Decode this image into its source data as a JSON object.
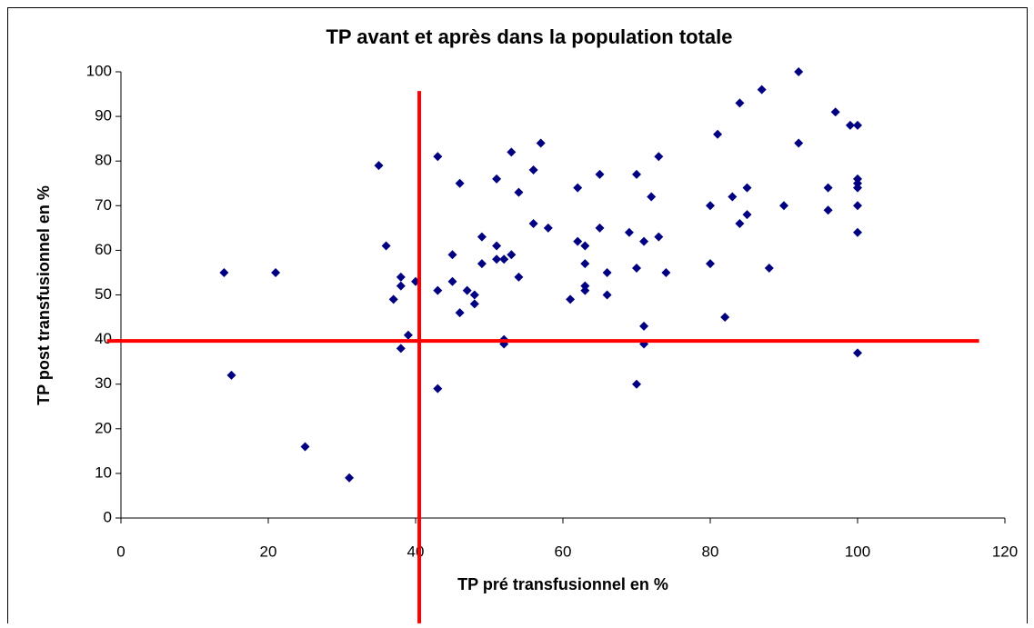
{
  "chart_data": {
    "type": "scatter",
    "title": "TP avant et après dans la population totale",
    "xlabel": "TP pré transfusionnel en %",
    "ylabel": "TP post transfusionnel en %",
    "color": "#000080",
    "xlim": [
      0,
      120
    ],
    "xticks": [
      0,
      20,
      40,
      60,
      80,
      100,
      120
    ],
    "ylim": [
      0,
      100
    ],
    "yticks": [
      0,
      10,
      20,
      30,
      40,
      50,
      60,
      70,
      80,
      90,
      100
    ],
    "grid": false,
    "x": [
      14,
      15,
      21,
      25,
      31,
      35,
      36,
      37,
      38,
      38,
      38,
      39,
      40,
      43,
      43,
      43,
      45,
      45,
      46,
      46,
      47,
      48,
      48,
      49,
      49,
      51,
      51,
      51,
      52,
      52,
      52,
      53,
      53,
      54,
      54,
      56,
      56,
      57,
      58,
      61,
      62,
      62,
      63,
      63,
      63,
      63,
      65,
      65,
      66,
      66,
      69,
      70,
      70,
      70,
      71,
      71,
      71,
      72,
      73,
      73,
      74,
      80,
      80,
      81,
      82,
      83,
      84,
      84,
      85,
      85,
      87,
      88,
      90,
      92,
      92,
      96,
      96,
      97,
      99,
      100,
      100,
      100,
      100,
      100,
      100,
      100
    ],
    "y": [
      55,
      32,
      55,
      16,
      9,
      79,
      61,
      49,
      54,
      52,
      38,
      41,
      53,
      81,
      51,
      29,
      59,
      53,
      75,
      46,
      51,
      50,
      48,
      63,
      57,
      76,
      61,
      58,
      58,
      40,
      39,
      82,
      59,
      73,
      54,
      78,
      66,
      84,
      65,
      49,
      74,
      62,
      61,
      57,
      52,
      51,
      77,
      65,
      55,
      50,
      64,
      77,
      56,
      30,
      62,
      43,
      39,
      72,
      81,
      63,
      55,
      70,
      57,
      86,
      45,
      72,
      93,
      66,
      74,
      68,
      96,
      56,
      70,
      100,
      84,
      74,
      69,
      91,
      88,
      88,
      76,
      75,
      74,
      70,
      64,
      37
    ],
    "reference_lines": [
      {
        "x": [
          40.5,
          40.5
        ],
        "y": [
          -23.6,
          95.7
        ],
        "color": "#ff0000"
      },
      {
        "x": [
          -1.9,
          116.5
        ],
        "y": [
          39.7,
          39.7
        ],
        "color": "#ff0000"
      }
    ]
  }
}
